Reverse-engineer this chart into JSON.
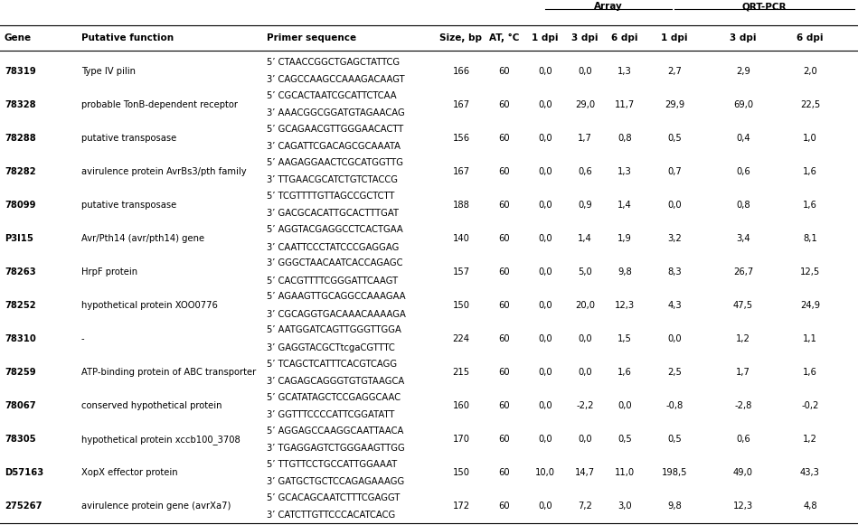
{
  "rows": [
    {
      "gene": "78319",
      "function": "Type IV pilin",
      "primers": [
        "5’ CTAACCGGCTGAGCTATTCG",
        "3’ CAGCCAAGCCAAAGACAAGT"
      ],
      "size": "166",
      "at": "60",
      "arr_1dpi": "0,0",
      "arr_3dpi": "0,0",
      "arr_6dpi": "1,3",
      "qrt_1dpi": "2,7",
      "qrt_3dpi": "2,9",
      "qrt_6dpi": "2,0"
    },
    {
      "gene": "78328",
      "function": "probable TonB-dependent receptor",
      "primers": [
        "5’ CGCACTAATCGCATTCTCAA",
        "3’ AAACGGCGGATGTAGAACAG"
      ],
      "size": "167",
      "at": "60",
      "arr_1dpi": "0,0",
      "arr_3dpi": "29,0",
      "arr_6dpi": "11,7",
      "qrt_1dpi": "29,9",
      "qrt_3dpi": "69,0",
      "qrt_6dpi": "22,5"
    },
    {
      "gene": "78288",
      "function": "putative transposase",
      "primers": [
        "5’ GCAGAACGTTGGGAACACTT",
        "3’ CAGATTCGACAGCGCAAATA"
      ],
      "size": "156",
      "at": "60",
      "arr_1dpi": "0,0",
      "arr_3dpi": "1,7",
      "arr_6dpi": "0,8",
      "qrt_1dpi": "0,5",
      "qrt_3dpi": "0,4",
      "qrt_6dpi": "1,0"
    },
    {
      "gene": "78282",
      "function": "avirulence protein AvrBs3/pth family",
      "primers": [
        "5’ AAGAGGAACTCGCATGGTTG",
        "3’ TTGAACGCATCTGTCTACCG"
      ],
      "size": "167",
      "at": "60",
      "arr_1dpi": "0,0",
      "arr_3dpi": "0,6",
      "arr_6dpi": "1,3",
      "qrt_1dpi": "0,7",
      "qrt_3dpi": "0,6",
      "qrt_6dpi": "1,6"
    },
    {
      "gene": "78099",
      "function": "putative transposase",
      "primers": [
        "5’ TCGTTTTGTTAGCCGCTCTT",
        "3’ GACGCACATTGCACTTTGAT"
      ],
      "size": "188",
      "at": "60",
      "arr_1dpi": "0,0",
      "arr_3dpi": "0,9",
      "arr_6dpi": "1,4",
      "qrt_1dpi": "0,0",
      "qrt_3dpi": "0,8",
      "qrt_6dpi": "1,6"
    },
    {
      "gene": "P3I15",
      "function": "Avr/Pth14 (avr/pth14) gene",
      "primers": [
        "5’ AGGTACGAGGCCTCACTGAA",
        "3’ CAATTCCCTATCCCGAGGAG"
      ],
      "size": "140",
      "at": "60",
      "arr_1dpi": "0,0",
      "arr_3dpi": "1,4",
      "arr_6dpi": "1,9",
      "qrt_1dpi": "3,2",
      "qrt_3dpi": "3,4",
      "qrt_6dpi": "8,1"
    },
    {
      "gene": "78263",
      "function": "HrpF protein",
      "primers": [
        "3’ GGGCTAACAATCACCAGAGC",
        "5’ CACGTTTTCGGGATTCAAGT"
      ],
      "size": "157",
      "at": "60",
      "arr_1dpi": "0,0",
      "arr_3dpi": "5,0",
      "arr_6dpi": "9,8",
      "qrt_1dpi": "8,3",
      "qrt_3dpi": "26,7",
      "qrt_6dpi": "12,5"
    },
    {
      "gene": "78252",
      "function": "hypothetical protein XOO0776",
      "primers": [
        "5’ AGAAGTTGCAGGCCAAAGAA",
        "3’ CGCAGGTGACAAACAAAAGA"
      ],
      "size": "150",
      "at": "60",
      "arr_1dpi": "0,0",
      "arr_3dpi": "20,0",
      "arr_6dpi": "12,3",
      "qrt_1dpi": "4,3",
      "qrt_3dpi": "47,5",
      "qrt_6dpi": "24,9"
    },
    {
      "gene": "78310",
      "function": "-",
      "primers": [
        "5’ AATGGATCAGTTGGGTTGGA",
        "3’ GAGGTACGCTtcgaCGTTTC"
      ],
      "size": "224",
      "at": "60",
      "arr_1dpi": "0,0",
      "arr_3dpi": "0,0",
      "arr_6dpi": "1,5",
      "qrt_1dpi": "0,0",
      "qrt_3dpi": "1,2",
      "qrt_6dpi": "1,1"
    },
    {
      "gene": "78259",
      "function": "ATP-binding protein of ABC transporter",
      "primers": [
        "5’ TCAGCTCATTTCACGTCAGG",
        "3’ CAGAGCAGGGTGTGTAAGCA"
      ],
      "size": "215",
      "at": "60",
      "arr_1dpi": "0,0",
      "arr_3dpi": "0,0",
      "arr_6dpi": "1,6",
      "qrt_1dpi": "2,5",
      "qrt_3dpi": "1,7",
      "qrt_6dpi": "1,6"
    },
    {
      "gene": "78067",
      "function": "conserved hypothetical protein",
      "primers": [
        "5’ GCATATAGCTCCGAGGCAAC",
        "3’ GGTTTCCCCATTCGGATATT"
      ],
      "size": "160",
      "at": "60",
      "arr_1dpi": "0,0",
      "arr_3dpi": "-2,2",
      "arr_6dpi": "0,0",
      "qrt_1dpi": "-0,8",
      "qrt_3dpi": "-2,8",
      "qrt_6dpi": "-0,2"
    },
    {
      "gene": "78305",
      "function": "hypothetical protein xccb100_3708",
      "primers": [
        "5’ AGGAGCCAAGGCAATTAACA",
        "3’ TGAGGAGTCTGGGAAGTTGG"
      ],
      "size": "170",
      "at": "60",
      "arr_1dpi": "0,0",
      "arr_3dpi": "0,0",
      "arr_6dpi": "0,5",
      "qrt_1dpi": "0,5",
      "qrt_3dpi": "0,6",
      "qrt_6dpi": "1,2"
    },
    {
      "gene": "D57163",
      "function": "XopX effector protein",
      "primers": [
        "5’ TTGTTCCTGCCATTGGAAAT",
        "3’ GATGCTGCTCCAGAGAAAGG"
      ],
      "size": "150",
      "at": "60",
      "arr_1dpi": "10,0",
      "arr_3dpi": "14,7",
      "arr_6dpi": "11,0",
      "qrt_1dpi": "198,5",
      "qrt_3dpi": "49,0",
      "qrt_6dpi": "43,3"
    },
    {
      "gene": "275267",
      "function": "avirulence protein gene (avrXa7)",
      "primers": [
        "5’ GCACAGCAATCTTTCGAGGT",
        "3’ CATCTTGTTCCCACATCACG"
      ],
      "size": "172",
      "at": "60",
      "arr_1dpi": "0,0",
      "arr_3dpi": "7,2",
      "arr_6dpi": "3,0",
      "qrt_1dpi": "9,8",
      "qrt_3dpi": "12,3",
      "qrt_6dpi": "4,8"
    }
  ],
  "background_color": "#ffffff",
  "font_size": 7.2,
  "header_font_size": 7.5
}
